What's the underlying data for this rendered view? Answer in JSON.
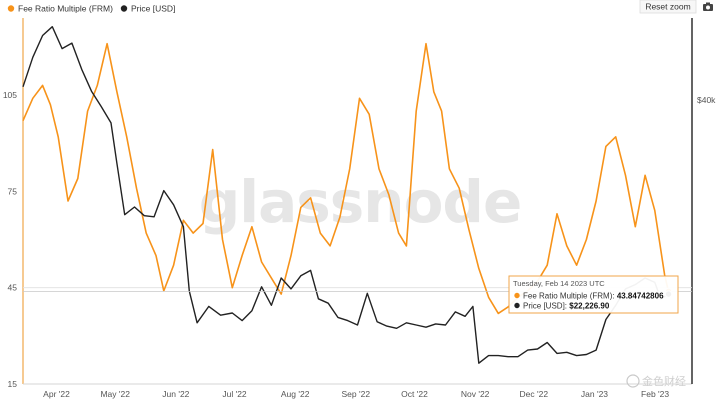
{
  "ui": {
    "reset_zoom_label": "Reset zoom",
    "camera_icon": "camera-icon",
    "watermark": "glassnode",
    "source_badge": "金色财经"
  },
  "tooltip": {
    "date": "Tuesday, Feb 14 2023 UTC",
    "frm_label": "Fee Ratio Multiple (FRM):",
    "frm_value": "43.84742806",
    "price_label": "Price [USD]:",
    "price_value": "$22,226.90"
  },
  "chart_data": {
    "type": "line",
    "legend": {
      "placement": "top-left"
    },
    "grid": false,
    "x_labels": [
      "Apr '22",
      "May '22",
      "Jun '22",
      "Jul '22",
      "Aug '22",
      "Sep '22",
      "Oct '22",
      "Nov '22",
      "Dec '22",
      "Jan '23",
      "Feb '23"
    ],
    "x_range": [
      "2022-03-21",
      "2023-02-26"
    ],
    "y_left": {
      "ticks": [
        15,
        45,
        75,
        105
      ],
      "range": [
        15,
        129
      ]
    },
    "y_right": {
      "ticks": [
        "$40k"
      ],
      "tick_values": [
        40000
      ],
      "range": [
        14000,
        47500
      ]
    },
    "highlight_date": "2023-02-14",
    "series": [
      {
        "name": "Fee Ratio Multiple (FRM)",
        "axis": "left",
        "color": "#f7931a",
        "points": [
          [
            "2022-03-21",
            97
          ],
          [
            "2022-03-26",
            104
          ],
          [
            "2022-03-31",
            108
          ],
          [
            "2022-04-04",
            102
          ],
          [
            "2022-04-08",
            92
          ],
          [
            "2022-04-13",
            72
          ],
          [
            "2022-04-18",
            79
          ],
          [
            "2022-04-23",
            100
          ],
          [
            "2022-04-28",
            108
          ],
          [
            "2022-05-03",
            121
          ],
          [
            "2022-05-08",
            106
          ],
          [
            "2022-05-13",
            92
          ],
          [
            "2022-05-18",
            76
          ],
          [
            "2022-05-23",
            62
          ],
          [
            "2022-05-28",
            55
          ],
          [
            "2022-06-01",
            44
          ],
          [
            "2022-06-06",
            52
          ],
          [
            "2022-06-11",
            66
          ],
          [
            "2022-06-16",
            62
          ],
          [
            "2022-06-21",
            65
          ],
          [
            "2022-06-26",
            88
          ],
          [
            "2022-07-01",
            60
          ],
          [
            "2022-07-06",
            45
          ],
          [
            "2022-07-11",
            55
          ],
          [
            "2022-07-16",
            64
          ],
          [
            "2022-07-21",
            53
          ],
          [
            "2022-07-26",
            48
          ],
          [
            "2022-07-31",
            43
          ],
          [
            "2022-08-05",
            55
          ],
          [
            "2022-08-10",
            70
          ],
          [
            "2022-08-15",
            73
          ],
          [
            "2022-08-20",
            62
          ],
          [
            "2022-08-25",
            58
          ],
          [
            "2022-08-30",
            67
          ],
          [
            "2022-09-04",
            82
          ],
          [
            "2022-09-09",
            104
          ],
          [
            "2022-09-14",
            99
          ],
          [
            "2022-09-19",
            82
          ],
          [
            "2022-09-24",
            74
          ],
          [
            "2022-09-29",
            62
          ],
          [
            "2022-10-03",
            58
          ],
          [
            "2022-10-08",
            100
          ],
          [
            "2022-10-13",
            121
          ],
          [
            "2022-10-17",
            106
          ],
          [
            "2022-10-21",
            100
          ],
          [
            "2022-10-25",
            82
          ],
          [
            "2022-10-30",
            76
          ],
          [
            "2022-11-04",
            63
          ],
          [
            "2022-11-09",
            51
          ],
          [
            "2022-11-14",
            42
          ],
          [
            "2022-11-19",
            37
          ],
          [
            "2022-11-24",
            39
          ],
          [
            "2022-11-29",
            42
          ],
          [
            "2022-12-04",
            44
          ],
          [
            "2022-12-09",
            47
          ],
          [
            "2022-12-14",
            52
          ],
          [
            "2022-12-19",
            68
          ],
          [
            "2022-12-24",
            58
          ],
          [
            "2022-12-29",
            52
          ],
          [
            "2023-01-03",
            60
          ],
          [
            "2023-01-08",
            72
          ],
          [
            "2023-01-13",
            89
          ],
          [
            "2023-01-18",
            92
          ],
          [
            "2023-01-23",
            80
          ],
          [
            "2023-01-28",
            64
          ],
          [
            "2023-02-02",
            80
          ],
          [
            "2023-02-07",
            69
          ],
          [
            "2023-02-12",
            49
          ],
          [
            "2023-02-14",
            43.85
          ]
        ]
      },
      {
        "name": "Price [USD]",
        "axis": "right",
        "color": "#222222",
        "points": [
          [
            "2022-03-21",
            41200
          ],
          [
            "2022-03-26",
            43900
          ],
          [
            "2022-03-31",
            45900
          ],
          [
            "2022-04-05",
            46700
          ],
          [
            "2022-04-10",
            44700
          ],
          [
            "2022-04-15",
            45200
          ],
          [
            "2022-04-20",
            42800
          ],
          [
            "2022-04-25",
            40800
          ],
          [
            "2022-04-30",
            39400
          ],
          [
            "2022-05-05",
            37900
          ],
          [
            "2022-05-08",
            34200
          ],
          [
            "2022-05-12",
            29500
          ],
          [
            "2022-05-17",
            30200
          ],
          [
            "2022-05-22",
            29400
          ],
          [
            "2022-05-27",
            29300
          ],
          [
            "2022-06-01",
            31700
          ],
          [
            "2022-06-06",
            30400
          ],
          [
            "2022-06-11",
            28400
          ],
          [
            "2022-06-14",
            22500
          ],
          [
            "2022-06-18",
            19600
          ],
          [
            "2022-06-24",
            21100
          ],
          [
            "2022-06-30",
            20300
          ],
          [
            "2022-07-06",
            20500
          ],
          [
            "2022-07-11",
            19800
          ],
          [
            "2022-07-16",
            20700
          ],
          [
            "2022-07-21",
            22900
          ],
          [
            "2022-07-26",
            21200
          ],
          [
            "2022-07-31",
            23700
          ],
          [
            "2022-08-05",
            22700
          ],
          [
            "2022-08-10",
            23900
          ],
          [
            "2022-08-15",
            24400
          ],
          [
            "2022-08-19",
            21800
          ],
          [
            "2022-08-24",
            21400
          ],
          [
            "2022-08-29",
            20100
          ],
          [
            "2022-09-03",
            19800
          ],
          [
            "2022-09-08",
            19400
          ],
          [
            "2022-09-13",
            22300
          ],
          [
            "2022-09-18",
            19700
          ],
          [
            "2022-09-23",
            19300
          ],
          [
            "2022-09-28",
            19100
          ],
          [
            "2022-10-03",
            19600
          ],
          [
            "2022-10-08",
            19400
          ],
          [
            "2022-10-13",
            19200
          ],
          [
            "2022-10-18",
            19500
          ],
          [
            "2022-10-23",
            19400
          ],
          [
            "2022-10-28",
            20600
          ],
          [
            "2022-11-02",
            20200
          ],
          [
            "2022-11-06",
            21100
          ],
          [
            "2022-11-09",
            15900
          ],
          [
            "2022-11-14",
            16600
          ],
          [
            "2022-11-19",
            16600
          ],
          [
            "2022-11-24",
            16500
          ],
          [
            "2022-11-29",
            16500
          ],
          [
            "2022-12-04",
            17100
          ],
          [
            "2022-12-09",
            17200
          ],
          [
            "2022-12-14",
            17800
          ],
          [
            "2022-12-19",
            16800
          ],
          [
            "2022-12-24",
            16900
          ],
          [
            "2022-12-29",
            16600
          ],
          [
            "2023-01-03",
            16700
          ],
          [
            "2023-01-08",
            17100
          ],
          [
            "2023-01-13",
            19900
          ],
          [
            "2023-01-18",
            21200
          ],
          [
            "2023-01-23",
            22700
          ],
          [
            "2023-01-28",
            23100
          ],
          [
            "2023-02-02",
            23700
          ],
          [
            "2023-02-07",
            23300
          ],
          [
            "2023-02-10",
            21800
          ],
          [
            "2023-02-14",
            22226.9
          ]
        ]
      }
    ]
  }
}
